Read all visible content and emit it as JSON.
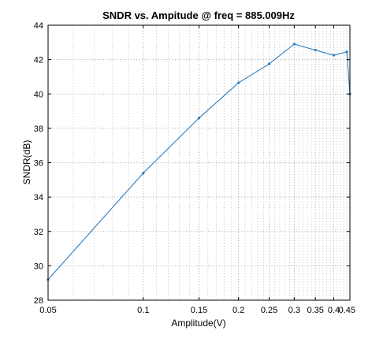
{
  "chart_data": {
    "type": "line",
    "title": "SNDR vs. Ampitude @ freq = 885.009Hz",
    "xlabel": "Amplitude(V)",
    "ylabel": "SNDR(dB)",
    "x_scale": "log",
    "xlim": [
      0.05,
      0.45
    ],
    "ylim": [
      28,
      44
    ],
    "grid": true,
    "x_ticks": [
      0.05,
      0.1,
      0.15,
      0.2,
      0.25,
      0.3,
      0.35,
      0.4,
      0.45
    ],
    "x_tick_labels": [
      "0.05",
      "0.1",
      "0.15",
      "0.2",
      "0.25",
      "0.3",
      "0.35",
      "0.4",
      "0.45"
    ],
    "y_ticks": [
      28,
      30,
      32,
      34,
      36,
      38,
      40,
      42,
      44
    ],
    "y_tick_labels": [
      "28",
      "30",
      "32",
      "34",
      "36",
      "38",
      "40",
      "42",
      "44"
    ],
    "line_color": "#2b7bbf",
    "series": [
      {
        "x": [
          0.05,
          0.1,
          0.15,
          0.2,
          0.25,
          0.3,
          0.35,
          0.4,
          0.44,
          0.45
        ],
        "y": [
          29.2,
          35.4,
          38.6,
          40.65,
          41.75,
          42.9,
          42.55,
          42.25,
          42.45,
          40.0
        ]
      }
    ]
  }
}
